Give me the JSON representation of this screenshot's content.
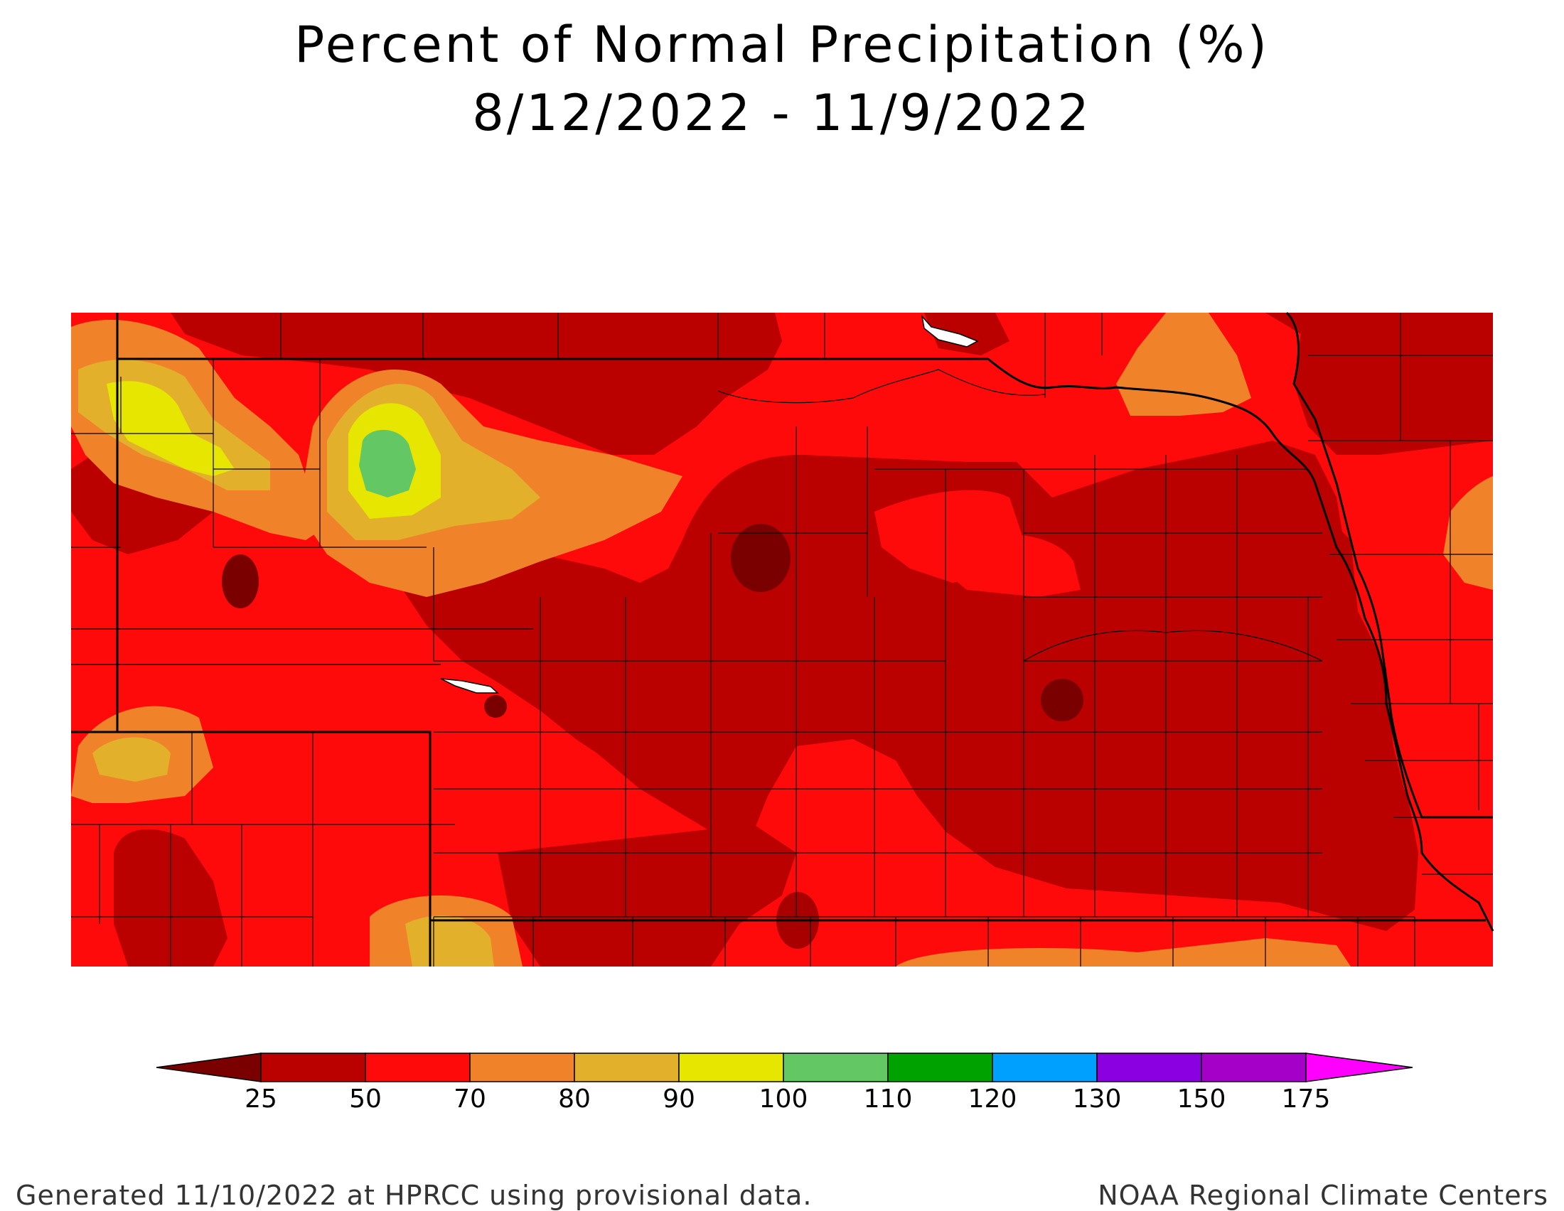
{
  "title": {
    "line1": "Percent of Normal Precipitation (%)",
    "line2": "8/12/2022 - 11/9/2022"
  },
  "legend": {
    "ticks": [
      "25",
      "50",
      "70",
      "80",
      "90",
      "100",
      "110",
      "120",
      "130",
      "150",
      "175"
    ],
    "colors": {
      "lt25": "#7a0000",
      "c25_50": "#bb0000",
      "c50_70": "#ff0a0a",
      "c70_80": "#f0822a",
      "c80_90": "#e3b02c",
      "c90_100": "#e6e600",
      "c100_110": "#63c763",
      "c110_120": "#00a200",
      "c120_130": "#00a0ff",
      "c130_150": "#8a00e0",
      "c150_175": "#a400c8",
      "gt175": "#ff00ff"
    }
  },
  "footer": {
    "left": "Generated 11/10/2022 at HPRCC using provisional data.",
    "right": "NOAA Regional Climate Centers"
  }
}
